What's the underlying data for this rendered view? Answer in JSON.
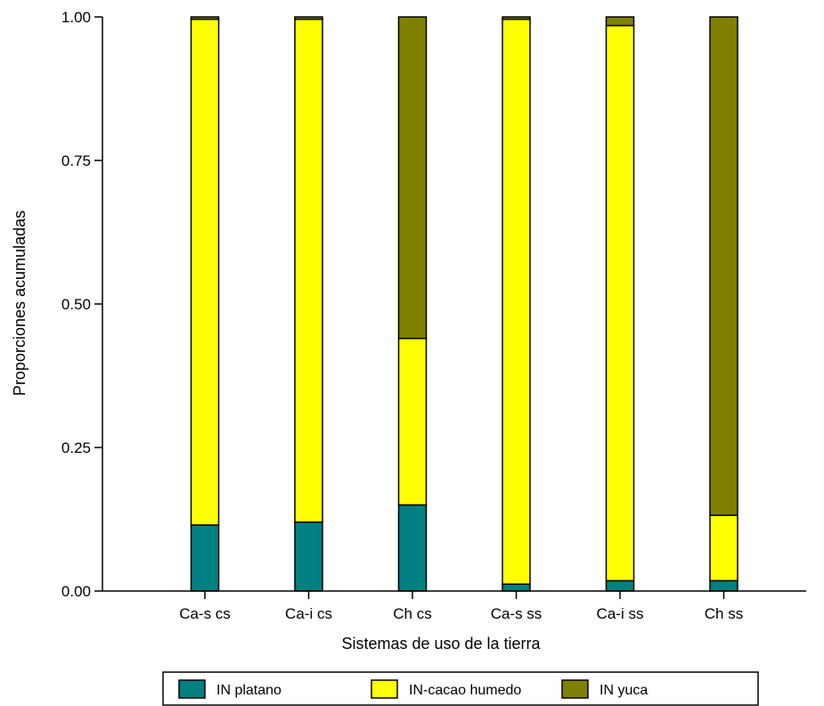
{
  "chart_data": {
    "type": "bar",
    "stacked": true,
    "title": "",
    "xlabel": "Sistemas de uso de la tierra",
    "ylabel": "Proporciones acumuladas",
    "ylim": [
      0,
      1
    ],
    "yticks": [
      "0.00",
      "0.25",
      "0.50",
      "0.75",
      "1.00"
    ],
    "categories": [
      "Ca-s cs",
      "Ca-i cs",
      "Ch cs",
      "Ca-s ss",
      "Ca-i ss",
      "Ch ss"
    ],
    "series": [
      {
        "name": "IN platano",
        "color": "#008080",
        "values": [
          0.115,
          0.12,
          0.15,
          0.012,
          0.018,
          0.018
        ]
      },
      {
        "name": "IN-cacao humedo",
        "color": "#ffff00",
        "values": [
          0.881,
          0.876,
          0.29,
          0.984,
          0.967,
          0.114
        ]
      },
      {
        "name": "IN yuca",
        "color": "#808000",
        "values": [
          0.004,
          0.004,
          0.56,
          0.004,
          0.015,
          0.868
        ]
      }
    ],
    "grid": false,
    "legend_position": "bottom"
  }
}
